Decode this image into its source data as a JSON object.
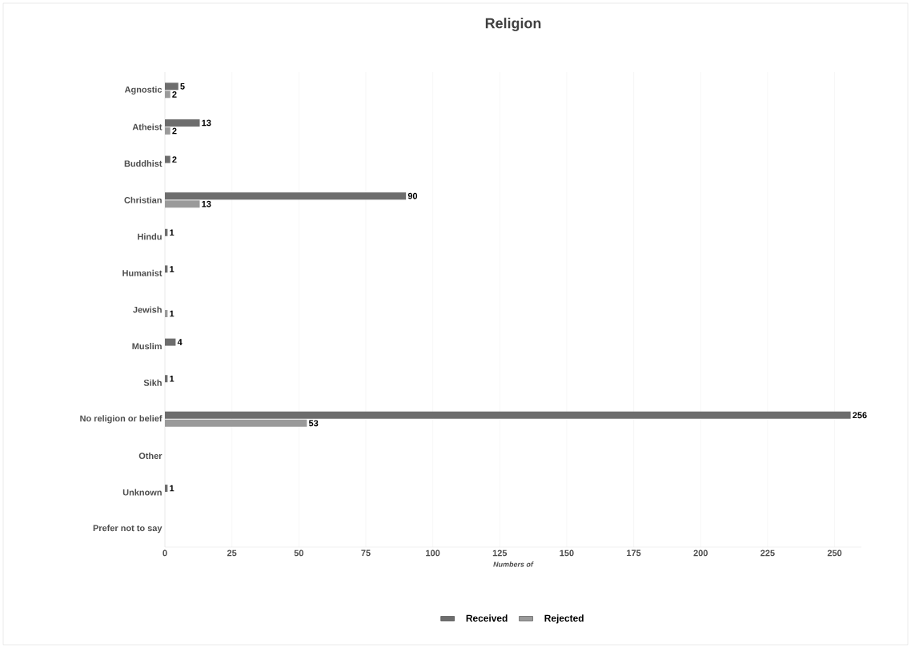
{
  "chart_data": {
    "type": "bar",
    "orientation": "horizontal",
    "title": "Religion",
    "xlabel": "Numbers of",
    "categories": [
      "Agnostic",
      "Atheist",
      "Buddhist",
      "Christian",
      "Hindu",
      "Humanist",
      "Jewish",
      "Muslim",
      "Sikh",
      "No religion or belief",
      "Other",
      "Unknown",
      "Prefer not to say"
    ],
    "series": [
      {
        "name": "Received",
        "color": "#6d6d6d",
        "values": [
          5,
          13,
          2,
          90,
          1,
          1,
          null,
          4,
          1,
          256,
          null,
          1,
          null
        ]
      },
      {
        "name": "Rejected",
        "color": "#9a9a9a",
        "values": [
          2,
          2,
          null,
          13,
          null,
          null,
          1,
          null,
          null,
          53,
          null,
          null,
          null
        ]
      }
    ],
    "xlim": [
      0,
      260
    ],
    "xticks": [
      0,
      25,
      50,
      75,
      100,
      125,
      150,
      175,
      200,
      225,
      250
    ],
    "grid": "x",
    "legend": "bottom",
    "data_labels": true
  }
}
